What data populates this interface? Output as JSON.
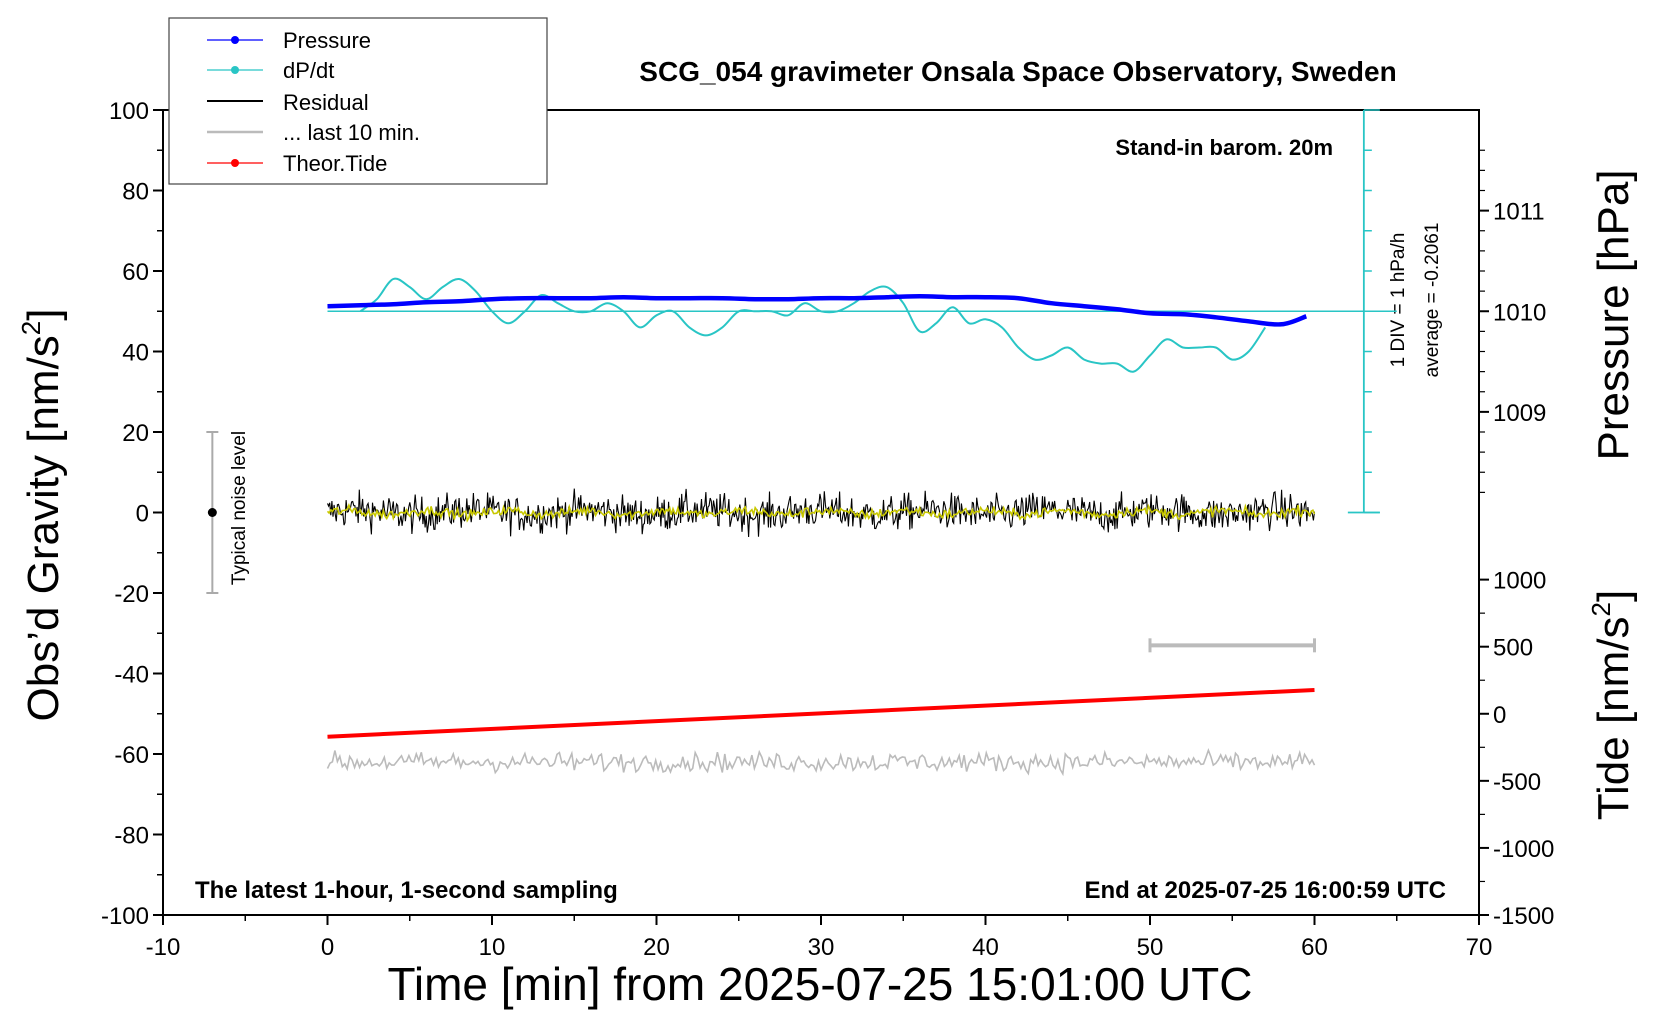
{
  "chart_data": {
    "type": "line",
    "title": "SCG_054 gravimeter Onsala Space Observatory, Sweden",
    "xlabel": "Time [min] from 2025-07-25 15:01:00 UTC",
    "ylabel_left": "Obs’d Gravity [nm/s",
    "ylabel_left_sup": "2",
    "ylabel_left_close": "]",
    "ylabel_pressure": "Pressure [hPa]",
    "ylabel_tide": "Tide [nm/s",
    "ylabel_tide_sup": "2",
    "ylabel_tide_close": "]",
    "xlim": [
      -10,
      70
    ],
    "ylim": [
      -100,
      100
    ],
    "xticks": [
      -10,
      0,
      10,
      20,
      30,
      40,
      50,
      60,
      70
    ],
    "xtick_labels": [
      "-10",
      "0",
      "10",
      "20",
      "30",
      "40",
      "50",
      "60",
      "70"
    ],
    "yticks": [
      -100,
      -80,
      -60,
      -40,
      -20,
      0,
      20,
      40,
      60,
      80,
      100
    ],
    "ytick_labels": [
      "-100",
      "-80",
      "-60",
      "-40",
      "-20",
      "0",
      "20",
      "40",
      "60",
      "80",
      "100"
    ],
    "pressure_axis": {
      "ticks": [
        1009,
        1010,
        1011
      ],
      "tick_labels": [
        "1009",
        "1010",
        "1011"
      ],
      "ref_value": 1010,
      "ref_gravity": 50,
      "gravity_per_hPa": 25
    },
    "tide_axis": {
      "ticks": [
        -1500,
        -1000,
        -500,
        0,
        500,
        1000
      ],
      "tick_labels": [
        "-1500",
        "-1000",
        "-500",
        "0",
        "500",
        "1000"
      ],
      "gravity_at_minus1500": -100,
      "gravity_per_unit": 0.03333
    },
    "legend": {
      "position": "top-left",
      "entries": [
        "Pressure",
        "dP/dt",
        "Residual",
        "... last 10 min.",
        "Theor.Tide"
      ]
    },
    "annotations": {
      "barometer": "Stand-in barom. 20m",
      "div": "1 DIV = 1 hPa/h",
      "average": "average = -0.2061",
      "noise": "Typical noise level",
      "footer_left": "The latest 1-hour, 1-second sampling",
      "footer_right": "End at 2025-07-25 16:00:59 UTC"
    },
    "noise_bar": {
      "x": -7,
      "center": 0,
      "low": -20,
      "high": 20
    },
    "last10_bar": {
      "x_start": 50,
      "x_end": 60,
      "y": -33
    },
    "dpdt_scale": {
      "x": 63,
      "y_min": 0,
      "y_max": 100
    },
    "grid": false,
    "series": [
      {
        "name": "Pressure",
        "axis": "pressure_hPa",
        "x": [
          0,
          2,
          4,
          6,
          8,
          10,
          12,
          14,
          16,
          18,
          20,
          22,
          24,
          26,
          28,
          30,
          32,
          34,
          36,
          38,
          40,
          42,
          44,
          46,
          48,
          50,
          52,
          54,
          56,
          58,
          59.5
        ],
        "y": [
          1010.05,
          1010.06,
          1010.07,
          1010.09,
          1010.1,
          1010.12,
          1010.13,
          1010.13,
          1010.13,
          1010.14,
          1010.13,
          1010.13,
          1010.13,
          1010.12,
          1010.12,
          1010.13,
          1010.13,
          1010.14,
          1010.15,
          1010.14,
          1010.14,
          1010.13,
          1010.08,
          1010.05,
          1010.02,
          1009.98,
          1009.97,
          1009.94,
          1009.9,
          1009.87,
          1009.95
        ]
      },
      {
        "name": "dP/dt",
        "axis": "gravity",
        "x": [
          2,
          3,
          4,
          5,
          6,
          7,
          8,
          9,
          10,
          11,
          12,
          13,
          14,
          15,
          16,
          17,
          18,
          19,
          20,
          21,
          22,
          23,
          24,
          25,
          26,
          27,
          28,
          29,
          30,
          31,
          32,
          33,
          34,
          35,
          36,
          37,
          38,
          39,
          40,
          41,
          42,
          43,
          44,
          45,
          46,
          47,
          48,
          49,
          50,
          51,
          52,
          53,
          54,
          55,
          56,
          57
        ],
        "y": [
          50,
          53,
          58,
          56,
          53,
          56,
          58,
          55,
          50,
          47,
          50,
          54,
          52,
          50,
          50,
          52,
          50,
          46,
          49,
          50,
          46,
          44,
          46,
          50,
          50,
          50,
          49,
          52,
          50,
          50,
          52,
          55,
          56,
          52,
          45,
          47,
          51,
          47,
          48,
          46,
          41,
          38,
          39,
          41,
          38,
          37,
          37,
          35,
          39,
          43,
          41,
          41,
          41,
          38,
          40,
          46
        ]
      },
      {
        "name": "Residual",
        "axis": "gravity",
        "x_start": 0,
        "x_end": 60,
        "amplitude": 3
      },
      {
        "name": "... last 10 min.",
        "axis": "gravity",
        "x_start": 0,
        "x_end": 60,
        "baseline": -62,
        "amplitude": 1.5
      },
      {
        "name": "Theor.Tide",
        "axis": "gravity",
        "x": [
          0,
          60
        ],
        "y": [
          -55.7,
          -44.1
        ]
      },
      {
        "name": "Smoothed residual",
        "axis": "gravity",
        "x_start": 0,
        "x_end": 60,
        "amplitude": 1
      }
    ],
    "colors": {
      "pressure": "#0000ff",
      "dpdt": "#29c5c5",
      "residual": "#000000",
      "smoothed": "#c8c800",
      "last10": "#bbbbbb",
      "tide": "#ff0000",
      "axis": "#000000"
    }
  }
}
